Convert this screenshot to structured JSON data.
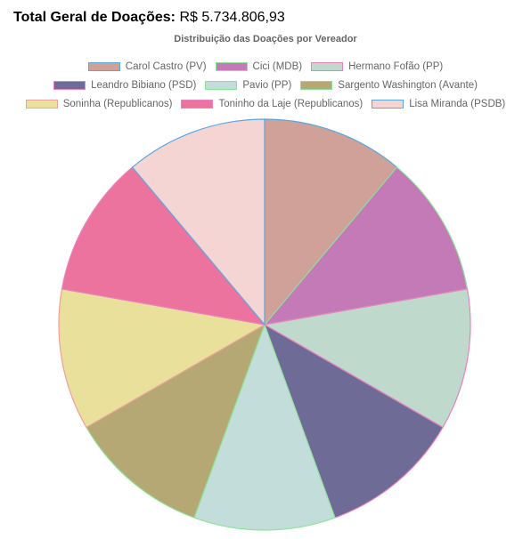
{
  "header": {
    "total_label": "Total Geral de Doações:",
    "total_value": "R$ 5.734.806,93"
  },
  "chart_data": {
    "type": "pie",
    "title": "Distribuição das Doações por Vereador",
    "legend_position": "top",
    "categories": [
      "Carol Castro  (PV)",
      "Cici (MDB)",
      "Hermano Fofão (PP)",
      "Leandro Bibiano (PSD)",
      "Pavio (PP)",
      "Sargento Washington  (Avante)",
      "Soninha  (Republicanos)",
      "Toninho da Laje (Republicanos)",
      "Lisa Miranda (PSDB)"
    ],
    "values": [
      1,
      1,
      1,
      1,
      1,
      1,
      1,
      1,
      1
    ],
    "colors": [
      "#cfa198",
      "#c37ab6",
      "#bfd9cd",
      "#6e6c96",
      "#c2ddda",
      "#b6a874",
      "#e9e09b",
      "#ec739e",
      "#f5d5d4"
    ],
    "border_colors": [
      "#59a8e0",
      "#8ee39a",
      "#e982bd",
      "#e982bd",
      "#8ee39a",
      "#8ee39a",
      "#f0a09a",
      "#e982bd",
      "#59a8e0"
    ]
  }
}
